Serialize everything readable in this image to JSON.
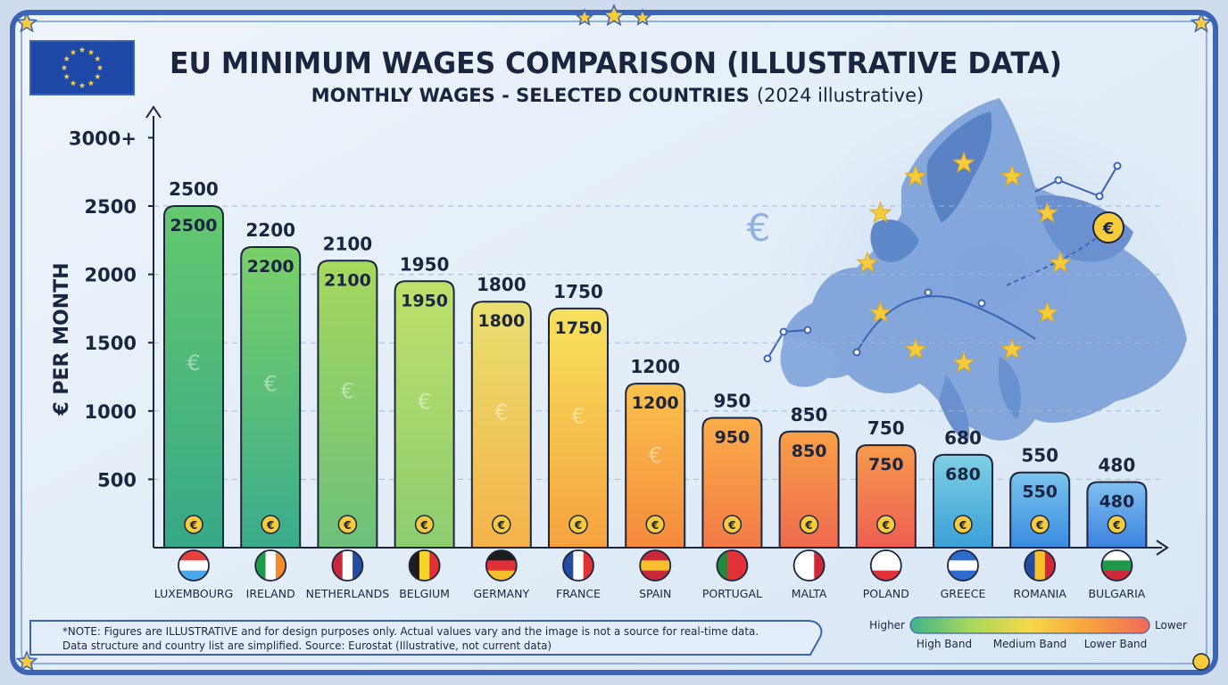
{
  "header": {
    "title": "EU MINIMUM WAGES COMPARISON (ILLUSTRATIVE DATA)",
    "subtitle_bold": "MONTHLY WAGES - SELECTED COUNTRIES",
    "subtitle_light": "(2024 illustrative)"
  },
  "chart_data": {
    "type": "bar",
    "title": "EU MINIMUM WAGES COMPARISON (ILLUSTRATIVE DATA)",
    "subtitle": "MONTHLY WAGES - SELECTED COUNTRIES (2024 illustrative)",
    "xlabel": "",
    "ylabel": "€ PER MONTH",
    "ylim": [
      0,
      3000
    ],
    "yticks": [
      500,
      1000,
      1500,
      2000,
      2500,
      3000
    ],
    "ytick_labels": [
      "500",
      "1000",
      "1500",
      "2000",
      "2500",
      "3000+"
    ],
    "grid": true,
    "categories": [
      "LUXEMBOURG",
      "IRELAND",
      "NETHERLANDS",
      "BELGIUM",
      "GERMANY",
      "FRANCE",
      "SPAIN",
      "PORTUGAL",
      "MALTA",
      "POLAND",
      "GREECE",
      "ROMANIA",
      "BULGARIA"
    ],
    "values": [
      2500,
      2200,
      2100,
      1950,
      1800,
      1750,
      1200,
      950,
      850,
      750,
      680,
      550,
      480
    ],
    "value_labels": [
      "2500",
      "2200",
      "2100",
      "1950",
      "1800",
      "1750",
      "1200",
      "950",
      "850",
      "750",
      "680",
      "550",
      "480"
    ],
    "bar_colors": [
      [
        "#64c86e",
        "#37a888"
      ],
      [
        "#7ad068",
        "#3aab8c"
      ],
      [
        "#a6d85c",
        "#6cc07c"
      ],
      [
        "#bfe06a",
        "#8ccd70"
      ],
      [
        "#e8e070",
        "#f5b24a"
      ],
      [
        "#f6e25c",
        "#f6a23e"
      ],
      [
        "#fbc24c",
        "#f58a3c"
      ],
      [
        "#fbae48",
        "#f27a46"
      ],
      [
        "#f8a046",
        "#ef6a4e"
      ],
      [
        "#f79a4c",
        "#ee5e52"
      ],
      [
        "#7ed0e2",
        "#3aa0d8"
      ],
      [
        "#7ac4ee",
        "#3a8ce0"
      ],
      [
        "#80c0f0",
        "#3a82de"
      ]
    ],
    "legend": {
      "placement": "bottom-right",
      "left_label": "Higher",
      "right_label": "Lower",
      "bands": [
        "High Band",
        "Medium Band",
        "Lower Band"
      ],
      "gradient": [
        "#3fb38a",
        "#a6d85c",
        "#f6d84a",
        "#f6a23e",
        "#ef6a5a"
      ]
    }
  },
  "note": {
    "line1": "*NOTE: Figures are ILLUSTRATIVE and for design purposes only. Actual values vary and the image is not a source for real-time data.",
    "line2": "Data structure and country list are simplified. Source: Eurostat (Illustrative, not current data)"
  },
  "colors": {
    "frame": "#3c64b4",
    "eu_flag": "#1e48a8",
    "eu_star": "#f6cc3c",
    "map_land": "#7aa0d8",
    "text_dark": "#1c2540"
  }
}
